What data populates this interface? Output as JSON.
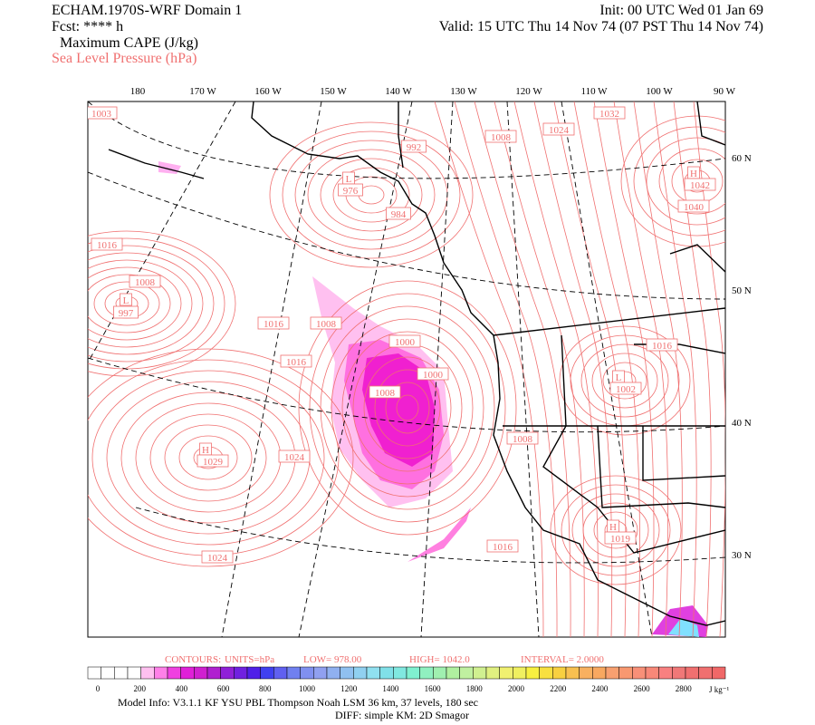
{
  "header": {
    "title": "ECHAM.1970S-WRF Domain 1",
    "fcst": "Fcst: **** h",
    "field_main": "Maximum CAPE (J/kg)",
    "field_contour": "Sea Level Pressure (hPa)",
    "init": "Init: 00 UTC Wed 01 Jan 69",
    "valid": "Valid: 15 UTC Thu 14 Nov 74 (07 PST Thu 14 Nov 74)"
  },
  "lon_labels": [
    "180",
    "170 W",
    "160 W",
    "150 W",
    "140 W",
    "130 W",
    "120 W",
    "110 W",
    "100 W",
    "90 W"
  ],
  "lat_labels": [
    "60 N",
    "50 N",
    "40 N",
    "30 N"
  ],
  "map_labels": [
    "1003",
    "992",
    "1008",
    "1024",
    "1032",
    "L",
    "976",
    "984",
    "H",
    "1042",
    "1040",
    "1016",
    "1008",
    "L",
    "997",
    "1016",
    "1008",
    "1000",
    "1016",
    "1000",
    "1008",
    "1016",
    "L",
    "1002",
    "1008",
    "H",
    "1029",
    "1024",
    "H",
    "1019",
    "1016",
    "1024"
  ],
  "contour_info": {
    "label": "CONTOURS:",
    "units": "UNITS=hPa",
    "low": "LOW=  978.00",
    "high": "HIGH=  1042.0",
    "interval": "INTERVAL=   2.0000"
  },
  "colorbar": {
    "ticks": [
      0,
      200,
      400,
      600,
      800,
      1000,
      1200,
      1400,
      1600,
      1800,
      2000,
      2200,
      2400,
      2600,
      2800
    ],
    "unit": "J kg⁻¹"
  },
  "footer": {
    "model_info": "Model Info: V3.1.1    KF     YSU PBL   Thompson     Noah LSM  36 km,    37 levels,   180 sec",
    "diff": "DIFF: simple KM: 2D Smagor"
  }
}
